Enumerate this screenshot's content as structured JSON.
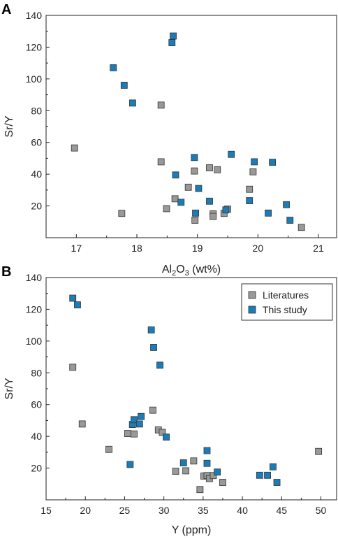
{
  "colors": {
    "literatures": "#999999",
    "this_study": "#1a7dba",
    "marker_stroke": "#333333"
  },
  "chart_data": [
    {
      "type": "scatter",
      "panel_label": "A",
      "xlabel": {
        "base": "Al",
        "sub1": "2",
        "mid": "O",
        "sub2": "3",
        "tail": " (wt%)"
      },
      "ylabel": "Sr/Y",
      "xlim": [
        16.5,
        21.3
      ],
      "ylim": [
        0,
        140
      ],
      "xticks": [
        "17",
        "18",
        "19",
        "20",
        "21"
      ],
      "yticks": [
        "20",
        "40",
        "60",
        "80",
        "100",
        "120",
        "140"
      ],
      "grid": false,
      "series": [
        {
          "name": "",
          "color_key": "literatures",
          "points": [
            [
              16.97,
              56.5
            ],
            [
              17.75,
              15.3
            ],
            [
              18.4,
              83.5
            ],
            [
              18.4,
              47.8
            ],
            [
              18.49,
              18.3
            ],
            [
              18.63,
              24.5
            ],
            [
              18.85,
              31.8
            ],
            [
              18.95,
              42.0
            ],
            [
              18.96,
              11.0
            ],
            [
              19.2,
              44.0
            ],
            [
              19.26,
              15.0
            ],
            [
              19.26,
              13.4
            ],
            [
              19.33,
              42.8
            ],
            [
              19.44,
              15.3
            ],
            [
              19.5,
              18.0
            ],
            [
              19.86,
              30.5
            ],
            [
              19.92,
              41.5
            ],
            [
              20.72,
              6.5
            ]
          ]
        },
        {
          "name": "",
          "color_key": "this_study",
          "points": [
            [
              17.61,
              107.0
            ],
            [
              17.79,
              96.0
            ],
            [
              17.93,
              84.8
            ],
            [
              18.58,
              122.8
            ],
            [
              18.6,
              127.0
            ],
            [
              18.64,
              39.5
            ],
            [
              18.73,
              22.3
            ],
            [
              18.95,
              50.5
            ],
            [
              18.97,
              15.5
            ],
            [
              19.02,
              31.0
            ],
            [
              19.2,
              23.0
            ],
            [
              19.47,
              17.5
            ],
            [
              19.56,
              52.5
            ],
            [
              19.86,
              23.3
            ],
            [
              19.94,
              47.8
            ],
            [
              20.17,
              15.5
            ],
            [
              20.24,
              47.5
            ],
            [
              20.47,
              20.8
            ],
            [
              20.53,
              11.0
            ]
          ]
        }
      ]
    },
    {
      "type": "scatter",
      "panel_label": "B",
      "xlabel": {
        "base": "Y (ppm)",
        "sub1": "",
        "mid": "",
        "sub2": "",
        "tail": ""
      },
      "ylabel": "Sr/Y",
      "xlim": [
        15,
        52
      ],
      "ylim": [
        0,
        140
      ],
      "xticks": [
        "15",
        "20",
        "25",
        "30",
        "35",
        "40",
        "45",
        "50"
      ],
      "yticks": [
        "20",
        "40",
        "60",
        "80",
        "100",
        "120",
        "140"
      ],
      "grid": false,
      "legend_position": "top-right",
      "series": [
        {
          "name": "Literatures",
          "color_key": "literatures",
          "points": [
            [
              18.4,
              83.5
            ],
            [
              19.6,
              47.8
            ],
            [
              23.0,
              31.8
            ],
            [
              25.4,
              41.8
            ],
            [
              26.2,
              41.5
            ],
            [
              28.6,
              56.5
            ],
            [
              29.3,
              44.0
            ],
            [
              29.8,
              42.5
            ],
            [
              31.5,
              18.0
            ],
            [
              32.8,
              18.3
            ],
            [
              33.8,
              24.5
            ],
            [
              34.6,
              6.5
            ],
            [
              35.1,
              15.0
            ],
            [
              35.5,
              15.3
            ],
            [
              35.8,
              13.4
            ],
            [
              36.3,
              15.3
            ],
            [
              37.5,
              11.0
            ],
            [
              49.7,
              30.5
            ]
          ]
        },
        {
          "name": "This study",
          "color_key": "this_study",
          "points": [
            [
              18.4,
              127.0
            ],
            [
              19.0,
              122.8
            ],
            [
              25.7,
              22.3
            ],
            [
              26.0,
              47.5
            ],
            [
              26.2,
              50.5
            ],
            [
              26.9,
              47.8
            ],
            [
              27.1,
              52.5
            ],
            [
              28.4,
              107.0
            ],
            [
              28.7,
              96.0
            ],
            [
              29.5,
              84.8
            ],
            [
              30.3,
              39.5
            ],
            [
              32.5,
              23.3
            ],
            [
              35.5,
              31.0
            ],
            [
              35.5,
              23.0
            ],
            [
              36.8,
              17.5
            ],
            [
              42.2,
              15.5
            ],
            [
              43.2,
              15.5
            ],
            [
              43.9,
              20.8
            ],
            [
              44.4,
              11.0
            ]
          ]
        }
      ]
    }
  ]
}
